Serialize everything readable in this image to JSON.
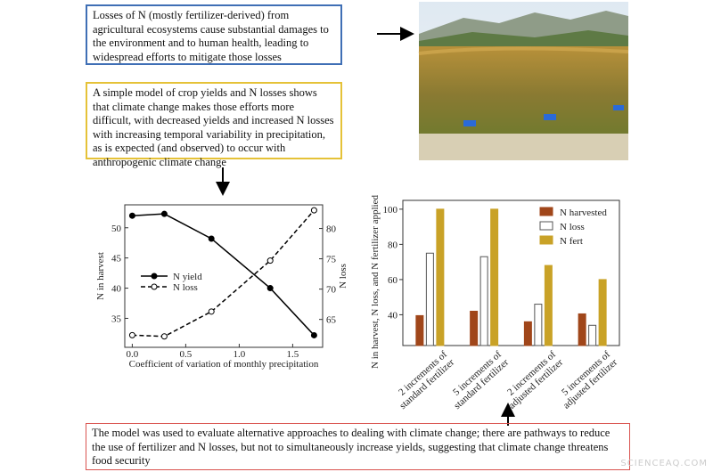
{
  "boxes": {
    "top": "Losses of N (mostly fertilizer-derived) from agricultural ecosystems cause substantial damages to the environment and to human health, leading to widespread efforts to mitigate those losses",
    "middle": "A simple model of crop yields and N losses shows that climate change makes those efforts more difficult, with decreased yields and increased N losses with increasing temporal variability in precipitation, as is expected (and observed) to occur with anthropogenic climate change",
    "bottom": "The model was used to evaluate alternative approaches to dealing with climate change; there are pathways to reduce the use of fertilizer and N losses, but not to simultaneously increase yields, suggesting that climate change threatens food security"
  },
  "watermark": "SCIENCEAQ.COM",
  "chart_data": [
    {
      "type": "line",
      "x_label": "Coefficient of variation of monthly precipitation",
      "y_label": "N in harvest",
      "y2_label": "N loss",
      "xlim": [
        -0.07,
        1.78
      ],
      "xticks": [
        {
          "value": 0,
          "label": "0.0"
        },
        0.5,
        {
          "value": 1,
          "label": "1.0"
        },
        1.5
      ],
      "ylim": [
        30.2,
        53.8
      ],
      "yticks": [
        35,
        40,
        45,
        50
      ],
      "y2lim": [
        60.4,
        83.9
      ],
      "y2ticks": [
        65,
        70,
        75,
        80
      ],
      "x": [
        0.0,
        0.3,
        0.74,
        1.29,
        1.7
      ],
      "series": [
        {
          "name": "N yield",
          "color": "#000000",
          "dashed": false,
          "marker": "filled",
          "values": [
            52.0,
            52.3,
            48.2,
            40.0,
            32.2
          ]
        },
        {
          "name": "N loss",
          "color": "#000000",
          "dashed": true,
          "marker": "open",
          "axis": "y2",
          "values": [
            62.4,
            62.2,
            66.3,
            74.7,
            83.0
          ]
        }
      ]
    },
    {
      "type": "bar",
      "y_label": "N in harvest, N loss, and N fertilizer applied",
      "categories": [
        "2 increments of standard fertilizer",
        "5 increments of standard fertilizer",
        "2 increments of adjusted fertilizer",
        "5 increments of adjusted fertilizer"
      ],
      "ylim": [
        22.5,
        105
      ],
      "yticks": [
        40,
        60,
        80,
        100
      ],
      "series": [
        {
          "name": "N harvested",
          "color": "#a0461a",
          "values": [
            39.5,
            42,
            36,
            40.5
          ]
        },
        {
          "name": "N loss",
          "color": "#ffffff",
          "values": [
            75,
            73,
            46,
            34
          ]
        },
        {
          "name": "N fert",
          "color": "#c9a227",
          "values": [
            100,
            100,
            68,
            60
          ]
        }
      ]
    }
  ]
}
